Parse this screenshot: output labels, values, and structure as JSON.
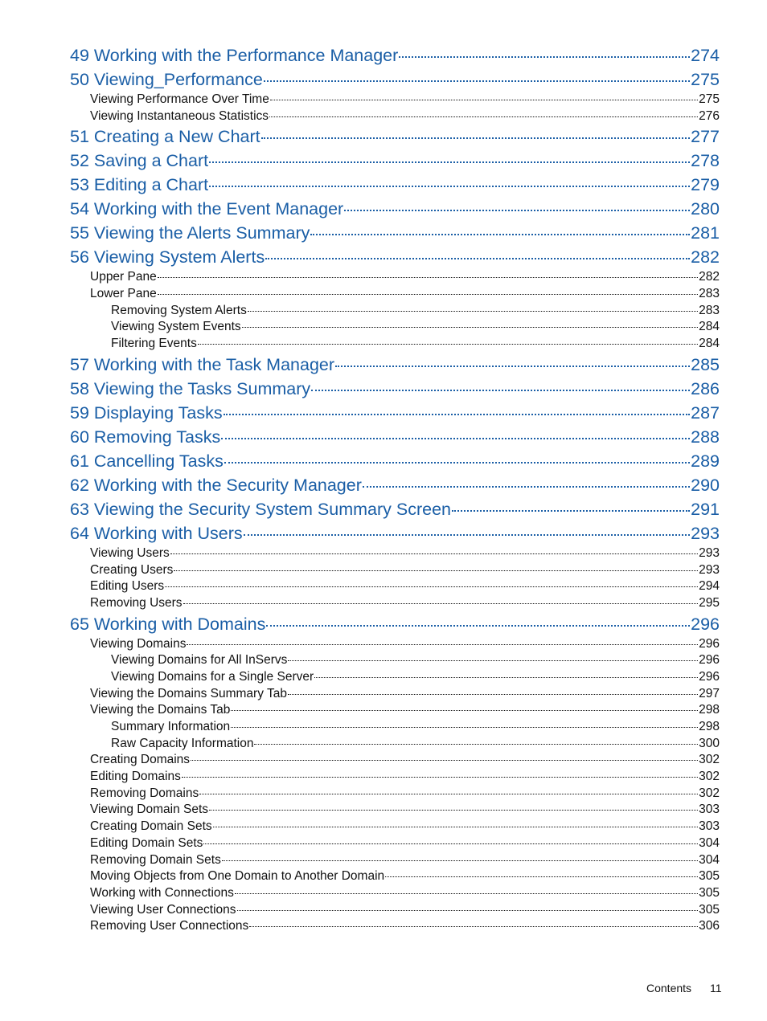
{
  "chapters": [
    {
      "title": "49 Working with the Performance Manager",
      "page": "274",
      "sections": []
    },
    {
      "title": "50 Viewing_Performance",
      "page": "275",
      "sections": [
        {
          "title": "Viewing Performance Over Time",
          "page": "275",
          "subsections": []
        },
        {
          "title": "Viewing Instantaneous Statistics",
          "page": "276",
          "subsections": []
        }
      ]
    },
    {
      "title": "51 Creating a New Chart",
      "page": "277",
      "sections": []
    },
    {
      "title": "52 Saving a Chart",
      "page": "278",
      "sections": []
    },
    {
      "title": "53 Editing a Chart",
      "page": "279",
      "sections": []
    },
    {
      "title": "54 Working with the Event Manager",
      "page": "280",
      "sections": []
    },
    {
      "title": "55 Viewing the Alerts Summary",
      "page": "281",
      "sections": []
    },
    {
      "title": "56 Viewing System Alerts",
      "page": "282",
      "sections": [
        {
          "title": "Upper Pane",
          "page": "282",
          "subsections": []
        },
        {
          "title": "Lower Pane",
          "page": "283",
          "subsections": [
            {
              "title": "Removing System Alerts",
              "page": "283"
            },
            {
              "title": "Viewing System Events",
              "page": "284"
            },
            {
              "title": "Filtering Events",
              "page": "284"
            }
          ]
        }
      ]
    },
    {
      "title": "57 Working with the Task Manager",
      "page": "285",
      "sections": []
    },
    {
      "title": "58 Viewing the Tasks Summary",
      "page": "286",
      "sections": []
    },
    {
      "title": "59 Displaying Tasks",
      "page": "287",
      "sections": []
    },
    {
      "title": "60 Removing Tasks",
      "page": "288",
      "sections": []
    },
    {
      "title": "61 Cancelling Tasks",
      "page": "289",
      "sections": []
    },
    {
      "title": "62 Working with the Security Manager",
      "page": "290",
      "sections": []
    },
    {
      "title": "63 Viewing the Security System Summary Screen",
      "page": "291",
      "sections": []
    },
    {
      "title": "64 Working with Users",
      "page": "293",
      "sections": [
        {
          "title": "Viewing Users",
          "page": "293",
          "subsections": []
        },
        {
          "title": "Creating Users",
          "page": "293",
          "subsections": []
        },
        {
          "title": "Editing Users",
          "page": "294",
          "subsections": []
        },
        {
          "title": "Removing Users",
          "page": "295",
          "subsections": []
        }
      ]
    },
    {
      "title": "65 Working with Domains",
      "page": "296",
      "sections": [
        {
          "title": "Viewing Domains",
          "page": "296",
          "subsections": [
            {
              "title": "Viewing Domains for All InServs",
              "page": "296"
            },
            {
              "title": "Viewing Domains for a Single Server",
              "page": "296"
            }
          ]
        },
        {
          "title": "Viewing the Domains Summary Tab",
          "page": "297",
          "subsections": []
        },
        {
          "title": "Viewing the Domains Tab",
          "page": "298",
          "subsections": [
            {
              "title": "Summary Information",
              "page": "298"
            },
            {
              "title": "Raw Capacity Information",
              "page": "300"
            }
          ]
        },
        {
          "title": "Creating Domains",
          "page": "302",
          "subsections": []
        },
        {
          "title": "Editing Domains",
          "page": "302",
          "subsections": []
        },
        {
          "title": "Removing Domains",
          "page": "302",
          "subsections": []
        },
        {
          "title": "Viewing Domain Sets",
          "page": "303",
          "subsections": []
        },
        {
          "title": "Creating Domain Sets",
          "page": "303",
          "subsections": []
        },
        {
          "title": "Editing Domain Sets",
          "page": "304",
          "subsections": []
        },
        {
          "title": "Removing Domain Sets",
          "page": "304",
          "subsections": []
        },
        {
          "title": "Moving Objects from One Domain to Another Domain",
          "page": "305",
          "subsections": []
        },
        {
          "title": "Working with Connections",
          "page": "305",
          "subsections": []
        },
        {
          "title": "Viewing User Connections",
          "page": "305",
          "subsections": []
        },
        {
          "title": "Removing User Connections",
          "page": "306",
          "subsections": []
        }
      ]
    }
  ],
  "footer": {
    "section": "Contents",
    "page": "11"
  }
}
